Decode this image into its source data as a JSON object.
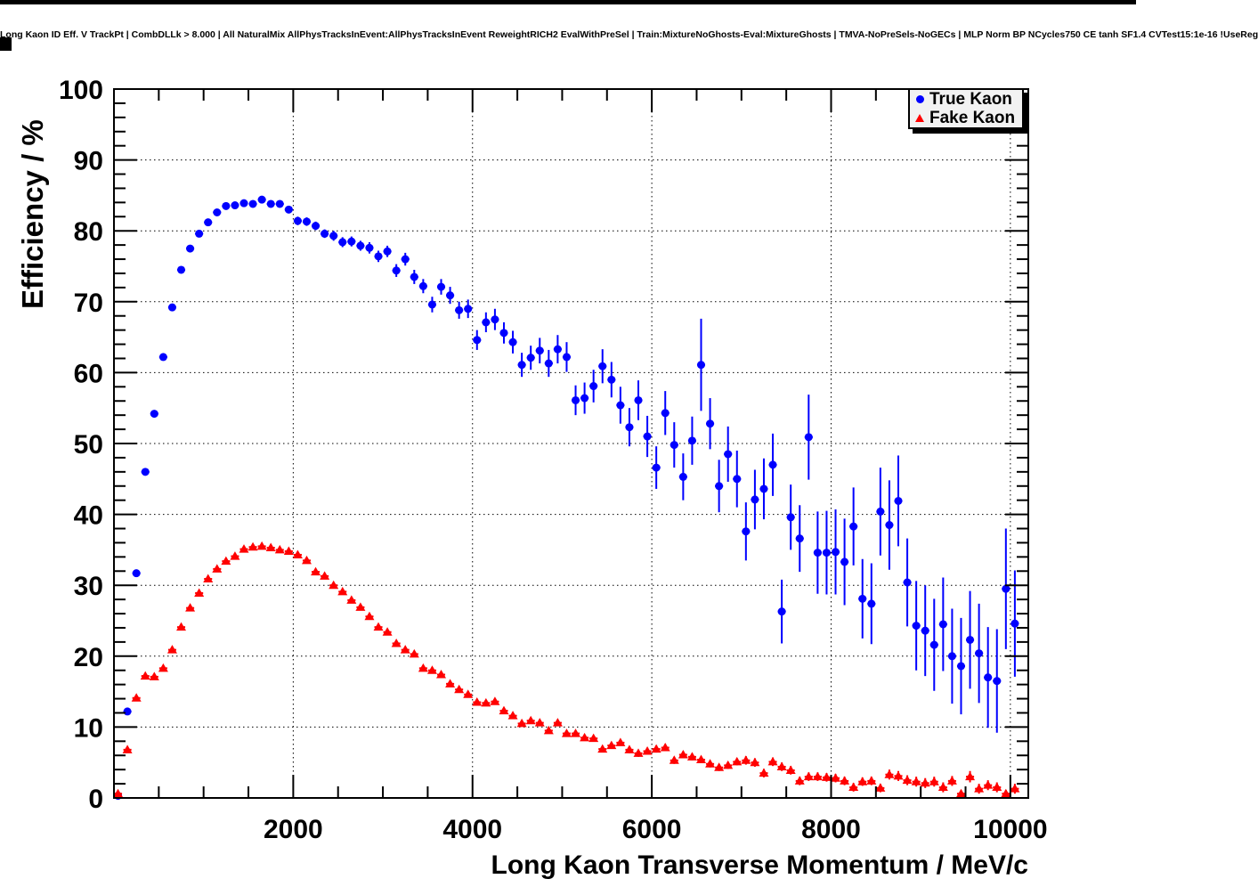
{
  "page": {
    "top_title": "Long Kaon ID Eff. V TrackPt | CombDLLk > 8.000 | All NaturalMix AllPhysTracksInEvent:AllPhysTracksInEvent ReweightRICH2 EvalWithPreSel | Train:MixtureNoGhosts-Eval:MixtureGhosts | TMVA-NoPreSels-NoGECs | MLP Norm BP NCycles750 CE tanh SF1.4 CVTest15:1e-16 !UseReg"
  },
  "legend": {
    "position": "top-right",
    "fill_color": "#f2f2f2",
    "border_color": "#000000",
    "shadow_color": "#000000",
    "items": [
      {
        "label": "True Kaon",
        "marker": "circle",
        "color": "#0000ff"
      },
      {
        "label": "Fake Kaon",
        "marker": "triangle",
        "color": "#ff0000"
      }
    ]
  },
  "chart_data": {
    "type": "scatter",
    "title": "Long Kaon ID Eff. V TrackPt | CombDLLk > 8.000 | All NaturalMix AllPhysTracksInEvent:AllPhysTracksInEvent ReweightRICH2 EvalWithPreSel | Train:MixtureNoGhosts-Eval:MixtureGhosts | TMVA-NoPreSels-NoGECs | MLP Norm BP NCycles750 CE tanh SF1.4 CVTest15:1e-16 !UseReg",
    "xlabel": "Long Kaon Transverse Momentum / MeV/c",
    "ylabel": "Efficiency / %",
    "xlim": [
      0,
      10200
    ],
    "ylim": [
      0,
      100
    ],
    "xticks": [
      2000,
      4000,
      6000,
      8000,
      10000
    ],
    "yticks": [
      0,
      10,
      20,
      30,
      40,
      50,
      60,
      70,
      80,
      90,
      100
    ],
    "x_minor_step": 500,
    "y_minor_step": 2,
    "grid": true,
    "grid_style": "dotted",
    "legend_position": "top-right",
    "x_half_bin": 45,
    "series": [
      {
        "name": "True Kaon",
        "marker": "circle",
        "color": "#0000ff",
        "points_format": [
          "pt_mev",
          "efficiency_pct",
          "err_pct"
        ],
        "points": [
          [
            45,
            0.3,
            0.3
          ],
          [
            150,
            12.2,
            0.4
          ],
          [
            250,
            31.7,
            0.5
          ],
          [
            350,
            46.0,
            0.5
          ],
          [
            450,
            54.2,
            0.5
          ],
          [
            550,
            62.2,
            0.5
          ],
          [
            650,
            69.2,
            0.5
          ],
          [
            750,
            74.5,
            0.5
          ],
          [
            850,
            77.5,
            0.5
          ],
          [
            950,
            79.6,
            0.5
          ],
          [
            1050,
            81.2,
            0.5
          ],
          [
            1150,
            82.6,
            0.5
          ],
          [
            1250,
            83.5,
            0.5
          ],
          [
            1350,
            83.6,
            0.5
          ],
          [
            1450,
            83.9,
            0.5
          ],
          [
            1550,
            83.8,
            0.5
          ],
          [
            1650,
            84.4,
            0.5
          ],
          [
            1750,
            83.8,
            0.5
          ],
          [
            1850,
            83.8,
            0.5
          ],
          [
            1950,
            83.0,
            0.5
          ],
          [
            2050,
            81.4,
            0.6
          ],
          [
            2150,
            81.3,
            0.6
          ],
          [
            2250,
            80.7,
            0.6
          ],
          [
            2350,
            79.6,
            0.6
          ],
          [
            2450,
            79.3,
            0.7
          ],
          [
            2550,
            78.4,
            0.7
          ],
          [
            2650,
            78.5,
            0.7
          ],
          [
            2750,
            77.9,
            0.7
          ],
          [
            2850,
            77.6,
            0.8
          ],
          [
            2950,
            76.4,
            0.8
          ],
          [
            3050,
            77.1,
            0.8
          ],
          [
            3150,
            74.4,
            0.9
          ],
          [
            3250,
            76.0,
            0.9
          ],
          [
            3350,
            73.5,
            1.0
          ],
          [
            3450,
            72.2,
            1.0
          ],
          [
            3550,
            69.6,
            1.1
          ],
          [
            3650,
            72.1,
            1.1
          ],
          [
            3750,
            70.9,
            1.2
          ],
          [
            3850,
            68.8,
            1.2
          ],
          [
            3950,
            69.0,
            1.3
          ],
          [
            4050,
            64.6,
            1.4
          ],
          [
            4150,
            67.1,
            1.4
          ],
          [
            4250,
            67.5,
            1.5
          ],
          [
            4350,
            65.6,
            1.5
          ],
          [
            4450,
            64.3,
            1.6
          ],
          [
            4550,
            61.1,
            1.7
          ],
          [
            4650,
            62.1,
            1.7
          ],
          [
            4750,
            63.1,
            1.8
          ],
          [
            4850,
            61.3,
            1.9
          ],
          [
            4950,
            63.3,
            2.0
          ],
          [
            5050,
            62.2,
            2.1
          ],
          [
            5150,
            56.1,
            2.1
          ],
          [
            5250,
            56.4,
            2.2
          ],
          [
            5350,
            58.1,
            2.3
          ],
          [
            5450,
            60.9,
            2.4
          ],
          [
            5550,
            59.0,
            2.5
          ],
          [
            5650,
            55.4,
            2.6
          ],
          [
            5750,
            52.3,
            2.7
          ],
          [
            5850,
            56.1,
            2.8
          ],
          [
            5950,
            51.0,
            2.9
          ],
          [
            6050,
            46.6,
            3.0
          ],
          [
            6150,
            54.3,
            3.1
          ],
          [
            6250,
            49.8,
            3.2
          ],
          [
            6350,
            45.3,
            3.3
          ],
          [
            6450,
            50.4,
            3.4
          ],
          [
            6550,
            61.1,
            6.5
          ],
          [
            6650,
            52.8,
            3.6
          ],
          [
            6750,
            44.0,
            3.7
          ],
          [
            6850,
            48.5,
            3.9
          ],
          [
            6950,
            45.0,
            4.0
          ],
          [
            7050,
            37.6,
            4.1
          ],
          [
            7150,
            42.1,
            4.2
          ],
          [
            7250,
            43.6,
            4.3
          ],
          [
            7350,
            47.0,
            4.4
          ],
          [
            7450,
            26.3,
            4.5
          ],
          [
            7550,
            39.6,
            4.6
          ],
          [
            7650,
            36.6,
            4.7
          ],
          [
            7750,
            50.9,
            6.0
          ],
          [
            7850,
            34.6,
            5.8
          ],
          [
            7950,
            34.6,
            5.9
          ],
          [
            8050,
            34.7,
            6.0
          ],
          [
            8150,
            33.3,
            6.1
          ],
          [
            8250,
            38.3,
            5.5
          ],
          [
            8350,
            28.1,
            5.6
          ],
          [
            8450,
            27.4,
            5.7
          ],
          [
            8550,
            40.4,
            6.2
          ],
          [
            8650,
            38.5,
            6.3
          ],
          [
            8750,
            41.9,
            6.4
          ],
          [
            8850,
            30.4,
            6.2
          ],
          [
            8950,
            24.3,
            6.3
          ],
          [
            9050,
            23.6,
            6.4
          ],
          [
            9150,
            21.6,
            6.5
          ],
          [
            9250,
            24.5,
            6.6
          ],
          [
            9350,
            20.0,
            6.7
          ],
          [
            9450,
            18.6,
            6.8
          ],
          [
            9550,
            22.3,
            6.9
          ],
          [
            9650,
            20.4,
            7.0
          ],
          [
            9750,
            17.0,
            7.1
          ],
          [
            9850,
            16.5,
            7.3
          ],
          [
            9950,
            29.5,
            8.5
          ],
          [
            10050,
            24.6,
            7.5
          ]
        ]
      },
      {
        "name": "Fake Kaon",
        "marker": "triangle",
        "color": "#ff0000",
        "points_format": [
          "pt_mev",
          "efficiency_pct",
          "err_pct"
        ],
        "points": [
          [
            45,
            0.6,
            0.3
          ],
          [
            150,
            6.8,
            0.3
          ],
          [
            250,
            14.1,
            0.3
          ],
          [
            350,
            17.2,
            0.3
          ],
          [
            450,
            17.1,
            0.3
          ],
          [
            550,
            18.3,
            0.3
          ],
          [
            650,
            20.9,
            0.3
          ],
          [
            750,
            24.1,
            0.3
          ],
          [
            850,
            26.8,
            0.3
          ],
          [
            950,
            28.9,
            0.3
          ],
          [
            1050,
            30.9,
            0.3
          ],
          [
            1150,
            32.3,
            0.3
          ],
          [
            1250,
            33.4,
            0.3
          ],
          [
            1350,
            34.1,
            0.3
          ],
          [
            1450,
            35.1,
            0.3
          ],
          [
            1550,
            35.4,
            0.3
          ],
          [
            1650,
            35.5,
            0.3
          ],
          [
            1750,
            35.3,
            0.3
          ],
          [
            1850,
            35.0,
            0.3
          ],
          [
            1950,
            34.8,
            0.3
          ],
          [
            2050,
            34.3,
            0.3
          ],
          [
            2150,
            33.5,
            0.3
          ],
          [
            2250,
            31.9,
            0.3
          ],
          [
            2350,
            31.3,
            0.3
          ],
          [
            2450,
            30.0,
            0.3
          ],
          [
            2550,
            29.1,
            0.3
          ],
          [
            2650,
            27.9,
            0.3
          ],
          [
            2750,
            26.9,
            0.3
          ],
          [
            2850,
            25.6,
            0.3
          ],
          [
            2950,
            24.1,
            0.3
          ],
          [
            3050,
            23.4,
            0.3
          ],
          [
            3150,
            21.8,
            0.3
          ],
          [
            3250,
            20.9,
            0.3
          ],
          [
            3350,
            20.3,
            0.3
          ],
          [
            3450,
            18.3,
            0.3
          ],
          [
            3550,
            18.0,
            0.3
          ],
          [
            3650,
            17.4,
            0.3
          ],
          [
            3750,
            16.1,
            0.3
          ],
          [
            3850,
            15.3,
            0.3
          ],
          [
            3950,
            14.6,
            0.3
          ],
          [
            4050,
            13.5,
            0.4
          ],
          [
            4150,
            13.4,
            0.4
          ],
          [
            4250,
            13.6,
            0.4
          ],
          [
            4350,
            12.3,
            0.4
          ],
          [
            4450,
            11.6,
            0.4
          ],
          [
            4550,
            10.5,
            0.4
          ],
          [
            4650,
            10.9,
            0.4
          ],
          [
            4750,
            10.6,
            0.4
          ],
          [
            4850,
            9.5,
            0.4
          ],
          [
            4950,
            10.6,
            0.4
          ],
          [
            5050,
            9.1,
            0.4
          ],
          [
            5150,
            9.1,
            0.4
          ],
          [
            5250,
            8.5,
            0.4
          ],
          [
            5350,
            8.4,
            0.4
          ],
          [
            5450,
            6.9,
            0.4
          ],
          [
            5550,
            7.4,
            0.4
          ],
          [
            5650,
            7.8,
            0.4
          ],
          [
            5750,
            6.8,
            0.5
          ],
          [
            5850,
            6.3,
            0.5
          ],
          [
            5950,
            6.6,
            0.5
          ],
          [
            6050,
            6.9,
            0.5
          ],
          [
            6150,
            7.1,
            0.5
          ],
          [
            6250,
            5.3,
            0.5
          ],
          [
            6350,
            6.1,
            0.5
          ],
          [
            6450,
            5.8,
            0.5
          ],
          [
            6550,
            5.4,
            0.5
          ],
          [
            6650,
            4.8,
            0.5
          ],
          [
            6750,
            4.3,
            0.5
          ],
          [
            6850,
            4.6,
            0.5
          ],
          [
            6950,
            5.1,
            0.5
          ],
          [
            7050,
            5.3,
            0.6
          ],
          [
            7150,
            5.0,
            0.6
          ],
          [
            7250,
            3.5,
            0.6
          ],
          [
            7350,
            5.1,
            0.6
          ],
          [
            7450,
            4.4,
            0.6
          ],
          [
            7550,
            3.9,
            0.6
          ],
          [
            7650,
            2.4,
            0.6
          ],
          [
            7750,
            3.0,
            0.6
          ],
          [
            7850,
            3.0,
            0.6
          ],
          [
            7950,
            2.9,
            0.6
          ],
          [
            8050,
            2.8,
            0.6
          ],
          [
            8150,
            2.4,
            0.6
          ],
          [
            8250,
            1.5,
            0.6
          ],
          [
            8350,
            2.3,
            0.6
          ],
          [
            8450,
            2.4,
            0.6
          ],
          [
            8550,
            1.4,
            0.6
          ],
          [
            8650,
            3.3,
            0.7
          ],
          [
            8750,
            3.1,
            0.7
          ],
          [
            8850,
            2.5,
            0.7
          ],
          [
            8950,
            2.3,
            0.7
          ],
          [
            9050,
            2.1,
            0.7
          ],
          [
            9150,
            2.3,
            0.7
          ],
          [
            9250,
            1.5,
            0.7
          ],
          [
            9350,
            2.4,
            0.7
          ],
          [
            9450,
            0.6,
            0.5
          ],
          [
            9550,
            3.0,
            0.8
          ],
          [
            9650,
            1.3,
            0.7
          ],
          [
            9750,
            1.8,
            0.7
          ],
          [
            9850,
            1.5,
            0.7
          ],
          [
            9950,
            0.6,
            0.5
          ],
          [
            10050,
            1.3,
            0.7
          ]
        ]
      }
    ]
  }
}
